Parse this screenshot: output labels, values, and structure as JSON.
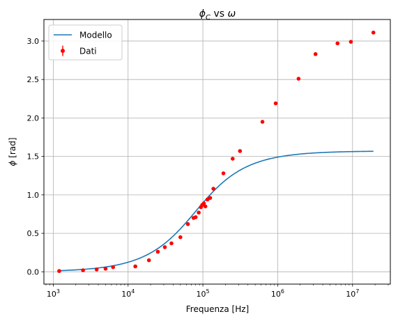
{
  "chart_data": {
    "type": "scatter",
    "title_main": "ϕ",
    "title_sub": "C",
    "title_rest": " vs ",
    "title_omega": "ω",
    "xlabel": "Frequenza [Hz]",
    "ylabel_symbol": "ϕ",
    "ylabel_unit": " [rad]",
    "xscale": "log",
    "xlim": [
      750,
      32000000
    ],
    "ylim": [
      -0.16,
      3.28
    ],
    "grid": true,
    "legend_position": "top-left",
    "x_ticks": [
      {
        "value": 1000,
        "base": "10",
        "exp": "3"
      },
      {
        "value": 10000,
        "base": "10",
        "exp": "4"
      },
      {
        "value": 100000,
        "base": "10",
        "exp": "5"
      },
      {
        "value": 1000000,
        "base": "10",
        "exp": "6"
      },
      {
        "value": 10000000,
        "base": "10",
        "exp": "7"
      }
    ],
    "y_ticks": [
      {
        "value": 0.0,
        "label": "0.0"
      },
      {
        "value": 0.5,
        "label": "0.5"
      },
      {
        "value": 1.0,
        "label": "1.0"
      },
      {
        "value": 1.5,
        "label": "1.5"
      },
      {
        "value": 2.0,
        "label": "2.0"
      },
      {
        "value": 2.5,
        "label": "2.5"
      },
      {
        "value": 3.0,
        "label": "3.0"
      }
    ],
    "model": {
      "name": "Modello",
      "color": "#1f77b4",
      "formula": "atan(f/fc)",
      "fc": 80000,
      "x_range": [
        1200,
        19000000
      ]
    },
    "data_series": {
      "name": "Dati",
      "color": "#ff0000",
      "x": [
        1200,
        2500,
        3800,
        5000,
        6300,
        12500,
        19000,
        25000,
        31000,
        38000,
        50000,
        63000,
        75000,
        80000,
        88000,
        94000,
        98000,
        103000,
        108000,
        115000,
        125000,
        138000,
        188000,
        250000,
        313000,
        625000,
        940000,
        1900000,
        3200000,
        6300000,
        9500000,
        19000000
      ],
      "y": [
        0.01,
        0.02,
        0.03,
        0.04,
        0.06,
        0.07,
        0.15,
        0.26,
        0.32,
        0.37,
        0.45,
        0.62,
        0.7,
        0.71,
        0.77,
        0.84,
        0.87,
        0.89,
        0.85,
        0.94,
        0.96,
        1.08,
        1.28,
        1.47,
        1.57,
        1.95,
        2.19,
        2.51,
        2.83,
        2.97,
        2.99,
        3.11
      ]
    }
  }
}
